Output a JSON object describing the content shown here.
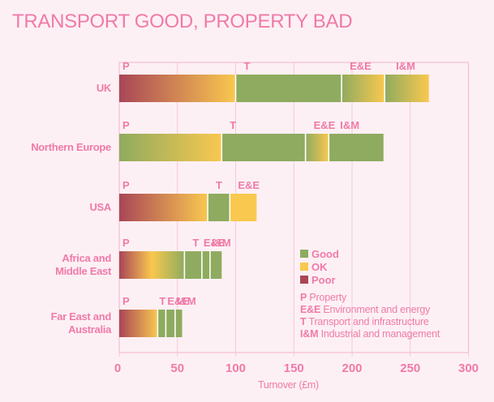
{
  "chart_data": {
    "type": "bar",
    "orientation": "horizontal",
    "stacked": true,
    "title": "TRANSPORT GOOD, PROPERTY BAD",
    "xlabel": "Turnover (£m)",
    "ylabel": "",
    "xlim": [
      0,
      300
    ],
    "xticks": [
      "0",
      "50",
      "100",
      "150",
      "200",
      "250",
      "300"
    ],
    "grid": true,
    "categories": [
      "UK",
      "Northern Europe",
      "USA",
      "Africa and Middle East",
      "Far East and Australia"
    ],
    "category_lines": [
      [
        "UK"
      ],
      [
        "Northern Europe"
      ],
      [
        "USA"
      ],
      [
        "Africa and",
        "Middle East"
      ],
      [
        "Far East and",
        "Australia"
      ]
    ],
    "bars": [
      {
        "category": "UK",
        "segments": [
          {
            "key": "P",
            "value": 100,
            "rating": "Poor→OK"
          },
          {
            "key": "T",
            "value": 91,
            "rating": "Good"
          },
          {
            "key": "E&E",
            "value": 37,
            "rating": "Good→OK"
          },
          {
            "key": "I&M",
            "value": 38,
            "rating": "Good→OK"
          }
        ]
      },
      {
        "category": "Northern Europe",
        "segments": [
          {
            "key": "P",
            "value": 88,
            "rating": "Good→OK"
          },
          {
            "key": "T",
            "value": 72,
            "rating": "Good"
          },
          {
            "key": "E&E",
            "value": 20,
            "rating": "Good→OK"
          },
          {
            "key": "I&M",
            "value": 47,
            "rating": "Good"
          }
        ]
      },
      {
        "category": "USA",
        "segments": [
          {
            "key": "P",
            "value": 76,
            "rating": "Poor→OK"
          },
          {
            "key": "T",
            "value": 19,
            "rating": "Good"
          },
          {
            "key": "E&E",
            "value": 23,
            "rating": "OK"
          }
        ]
      },
      {
        "category": "Africa and Middle East",
        "segments": [
          {
            "key": "P",
            "value": 56,
            "rating": "Poor→OK→Good"
          },
          {
            "key": "T",
            "value": 15,
            "rating": "Good"
          },
          {
            "key": "E&E",
            "value": 7,
            "rating": "Good"
          },
          {
            "key": "I&M",
            "value": 10,
            "rating": "Good"
          }
        ]
      },
      {
        "category": "Far East and Australia",
        "segments": [
          {
            "key": "P",
            "value": 33,
            "rating": "Poor→OK"
          },
          {
            "key": "T",
            "value": 7,
            "rating": "Good"
          },
          {
            "key": "E&E",
            "value": 8,
            "rating": "Good"
          },
          {
            "key": "I&M",
            "value": 6,
            "rating": "Good"
          }
        ]
      }
    ],
    "legend": {
      "placement": "bottom-right",
      "ratings": [
        {
          "label": "Good",
          "color": "#8fab5f"
        },
        {
          "label": "OK",
          "color": "#f9c84f"
        },
        {
          "label": "Poor",
          "color": "#a94657"
        }
      ],
      "abbreviations": [
        {
          "abbr": "P",
          "label": "Property"
        },
        {
          "abbr": "E&E",
          "label": "Environment and energy"
        },
        {
          "abbr": "T",
          "label": "Transport and infrastructure"
        },
        {
          "abbr": "I&M",
          "label": "Industrial and management"
        }
      ]
    }
  },
  "colors": {
    "background": "#fdf0f4",
    "text": "#f07aa8",
    "grid": "#f4bfd3",
    "good": "#8fab5f",
    "ok": "#f9c84f",
    "poor": "#a94657"
  }
}
